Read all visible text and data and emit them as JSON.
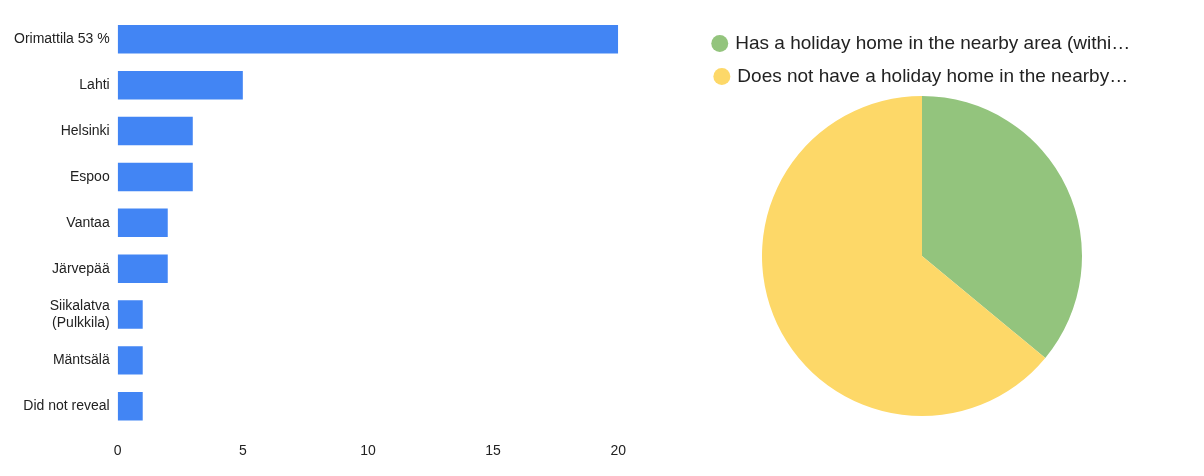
{
  "chart_data": [
    {
      "type": "bar",
      "orientation": "horizontal",
      "categories": [
        "Orimattila 53 %",
        "Lahti",
        "Helsinki",
        "Espoo",
        "Vantaa",
        "Järvepää",
        "Siikalatva (Pulkkila)",
        "Mäntsälä",
        "Did not reveal"
      ],
      "values": [
        20,
        5,
        3,
        3,
        2,
        2,
        1,
        1,
        1
      ],
      "color": "#4285f4",
      "xlim": [
        0,
        20
      ],
      "xticks": [
        0,
        5,
        10,
        15,
        20
      ],
      "grid": false,
      "legend": false
    },
    {
      "type": "pie",
      "categories": [
        "Has a holiday home in the nearby area (withi…",
        "Does not have a holiday home in the nearby…"
      ],
      "values": [
        36,
        64
      ],
      "colors": [
        "#93c47d",
        "#fdd868"
      ],
      "legend": "top"
    }
  ]
}
